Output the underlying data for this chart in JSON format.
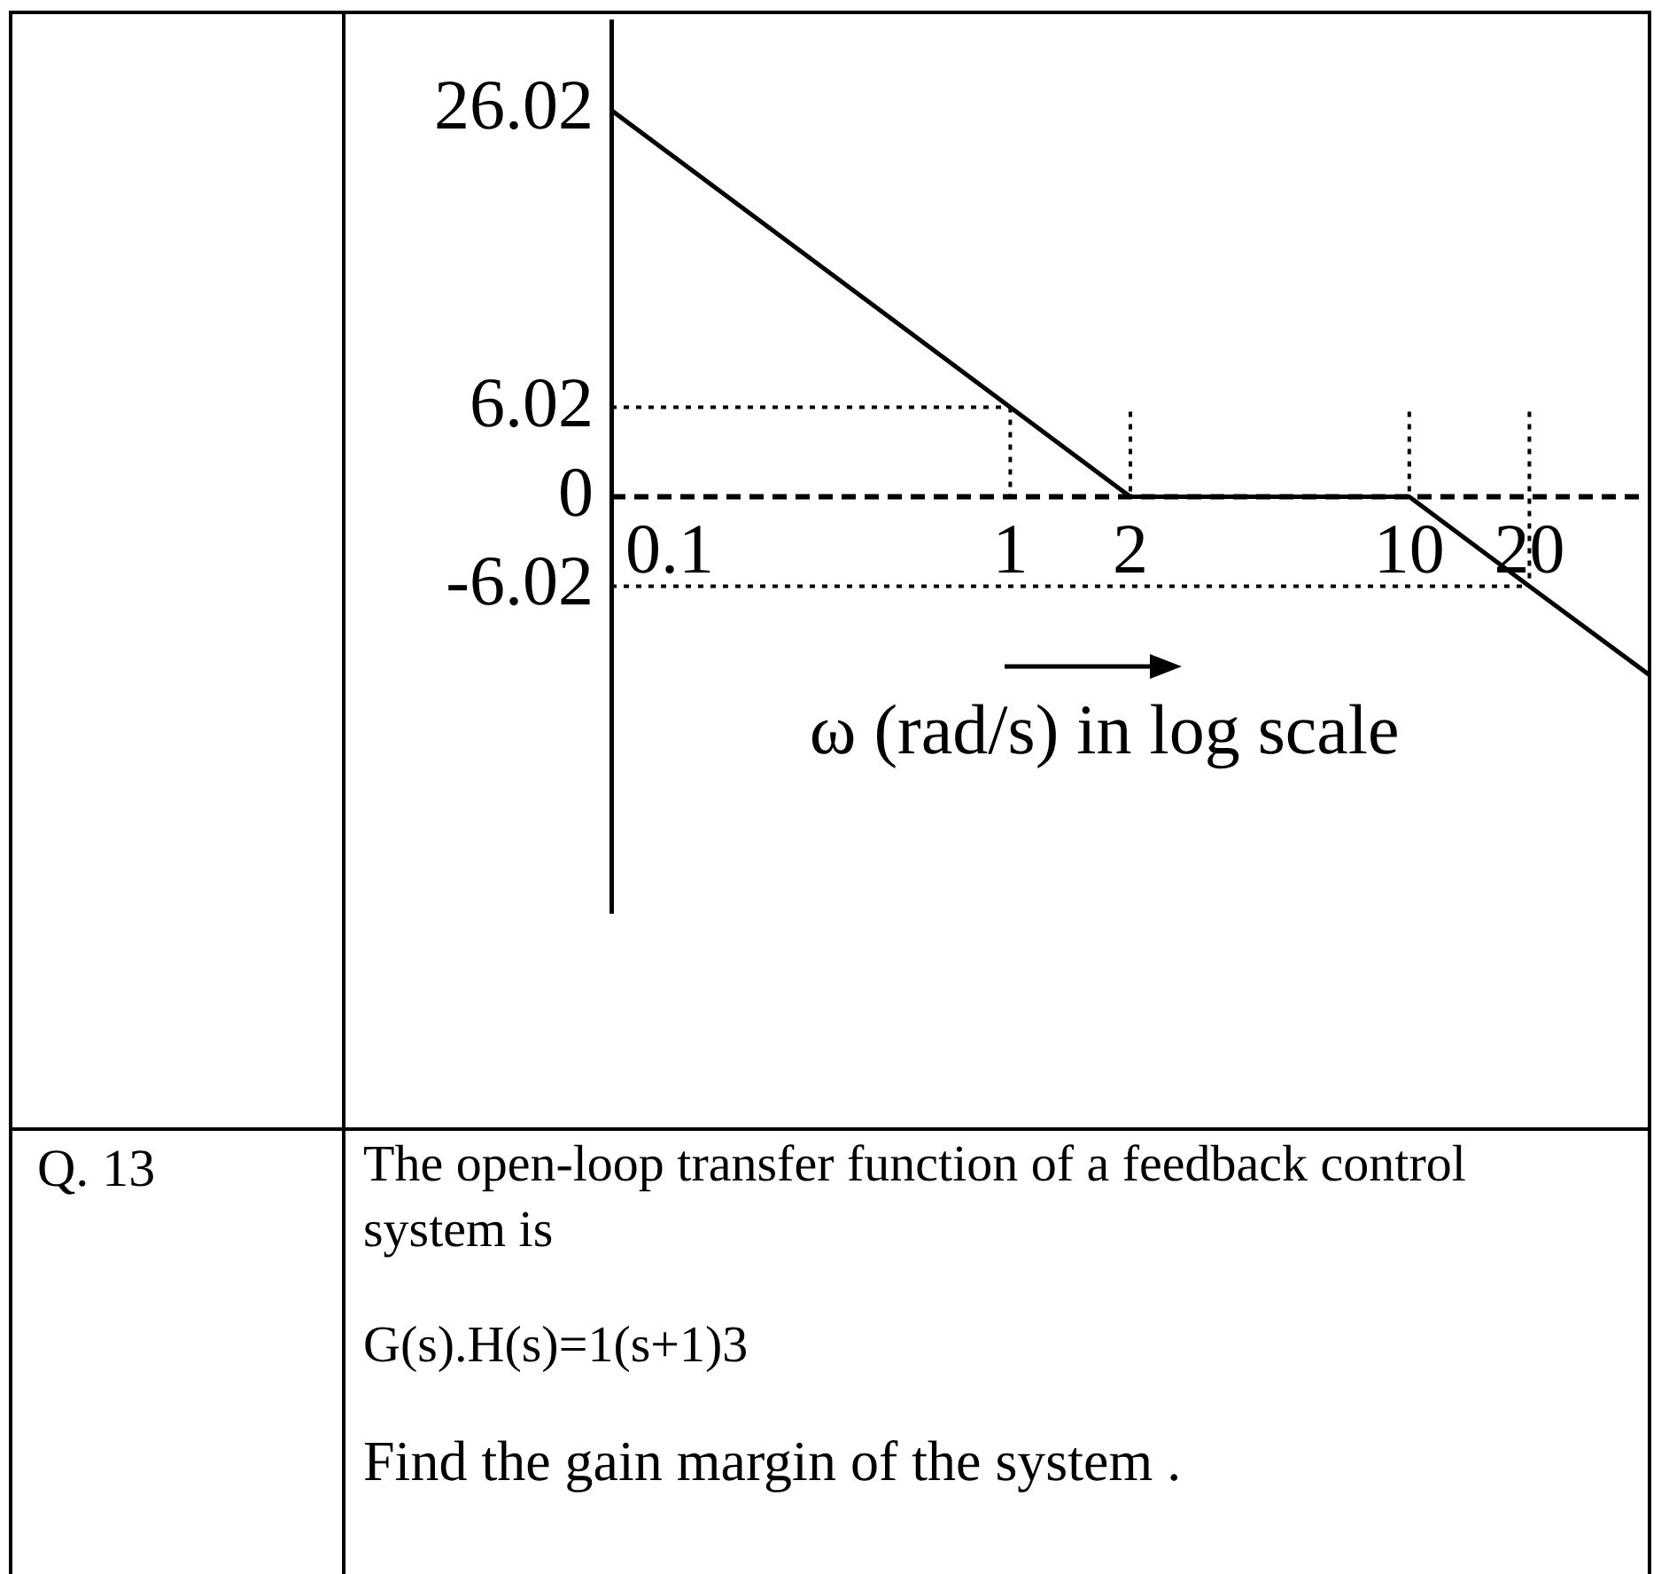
{
  "chart_data": {
    "type": "line",
    "xlabel": "ω (rad/s) in log scale",
    "x": [
      0.1,
      1,
      2,
      10,
      20,
      40
    ],
    "series": [
      {
        "color": "#000000",
        "values": [
          26.02,
          6.02,
          0,
          0,
          -6.02,
          -12
        ]
      }
    ],
    "log": "x",
    "xlim": [
      0.1,
      40
    ],
    "xticks": [
      0.1,
      1,
      2,
      10,
      20
    ],
    "ylim": [
      -28,
      32
    ],
    "yticks": [
      26.02,
      6.02,
      0,
      -6.02
    ],
    "marker": "none",
    "ref_lines": [
      {
        "axis": "y",
        "value": 0,
        "color": "#000000",
        "line_style": "dashed"
      },
      {
        "axis": "y",
        "value": 6.02,
        "color": "#000000",
        "line_style": "dotted"
      },
      {
        "axis": "y",
        "value": -6.02,
        "color": "#000000",
        "line_style": "dotted"
      },
      {
        "axis": "x",
        "value": 1,
        "color": "#000000",
        "line_style": "dotted"
      },
      {
        "axis": "x",
        "value": 2,
        "color": "#000000",
        "line_style": "dotted"
      },
      {
        "axis": "x",
        "value": 10,
        "color": "#000000",
        "line_style": "dotted"
      },
      {
        "axis": "x",
        "value": 20,
        "color": "#000000",
        "line_style": "dotted"
      }
    ],
    "annotations": [
      "Q. 13",
      "The open-loop transfer function of a feedback control system is",
      "G(s).H(s)=1(s+1)3",
      "Find the gain margin of the system ."
    ]
  }
}
